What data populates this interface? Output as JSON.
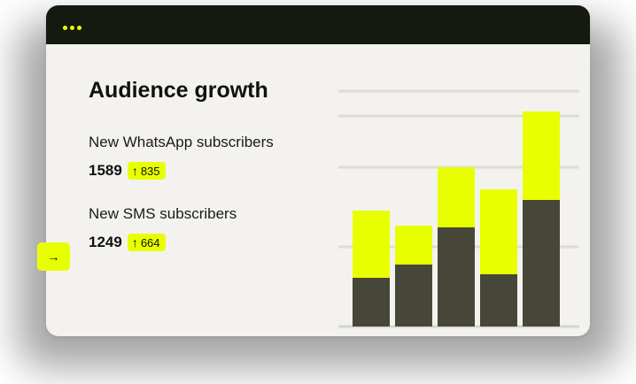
{
  "window": {
    "menu_icon": "three-dots-icon",
    "accent": "#e8ff00",
    "dark": "#141a10"
  },
  "title": "Audience growth",
  "metrics": [
    {
      "label": "New WhatsApp subscribers",
      "value": "1589",
      "change": "835"
    },
    {
      "label": "New SMS subscribers",
      "value": "1249",
      "change": "664"
    }
  ],
  "nav": {
    "arrow": "→",
    "icon": "arrow-right-icon"
  },
  "chart_data": {
    "type": "bar",
    "stacked": true,
    "categories": [
      "",
      "",
      "",
      "",
      ""
    ],
    "series": [
      {
        "values": [
          55,
          70,
          112,
          59,
          143
        ],
        "color": "#464739"
      },
      {
        "values": [
          76,
          44,
          68,
          96,
          100
        ],
        "color": "#e8ff00"
      }
    ],
    "ylim": [
      0,
      266
    ],
    "grid": true,
    "legend": "none",
    "xlabel": "",
    "ylabel": ""
  }
}
